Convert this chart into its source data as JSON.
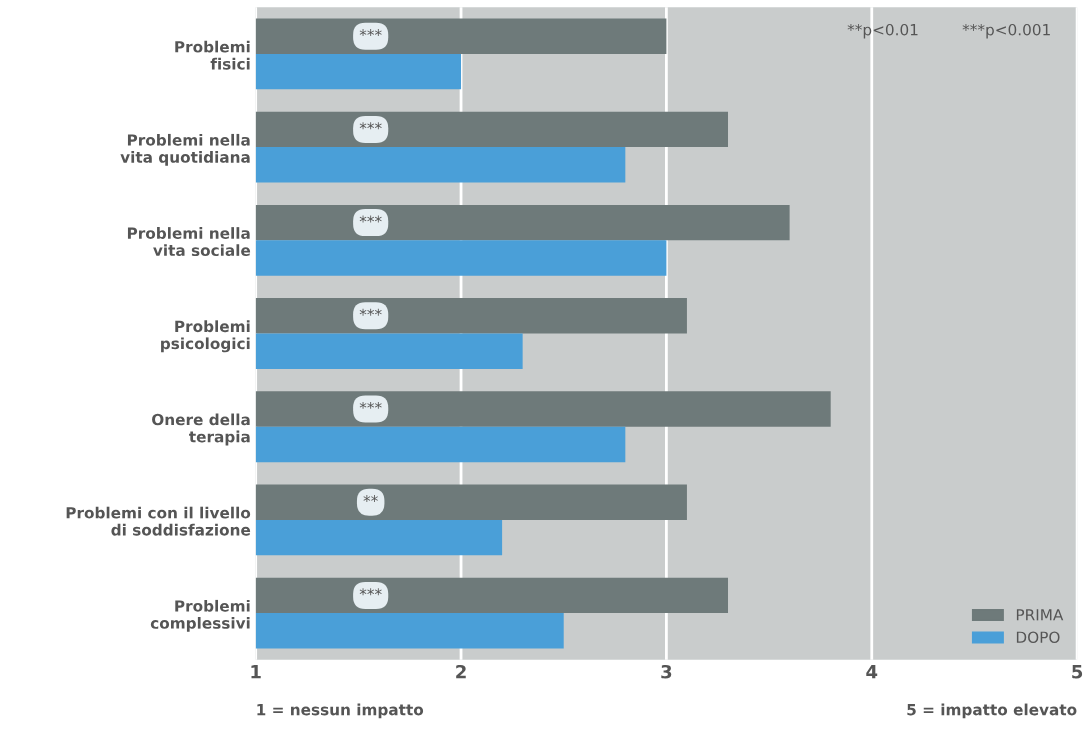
{
  "chart_data": {
    "type": "bar",
    "orientation": "horizontal",
    "categories": [
      "Problemi\nfisici",
      "Problemi nella\nvita quotidiana",
      "Problemi nella\nvita sociale",
      "Problemi\npsicologici",
      "Onere della\nterapia",
      "Problemi con il livello\ndi soddisfazione",
      "Problemi\ncomplessivi"
    ],
    "series": [
      {
        "name": "PRIMA",
        "color": "#6e7a7a",
        "values": [
          3.0,
          3.3,
          3.6,
          3.1,
          3.8,
          3.1,
          3.3
        ]
      },
      {
        "name": "DOPO",
        "color": "#4a9fd8",
        "values": [
          2.0,
          2.8,
          3.0,
          2.3,
          2.8,
          2.2,
          2.5
        ]
      }
    ],
    "xlim": [
      1,
      5
    ],
    "xticks": [
      1,
      2,
      3,
      4,
      5
    ],
    "grid": "x",
    "legend": "bottom right",
    "annotations": [
      {
        "text": "***",
        "y": "Problemi\nfisici"
      },
      {
        "text": "***",
        "y": "Problemi nella\nvita quotidiana"
      },
      {
        "text": "***",
        "y": "Problemi nella\nvita sociale"
      },
      {
        "text": "***",
        "y": "Problemi\npsicologici"
      },
      {
        "text": "***",
        "y": "Onere della\nterapia"
      },
      {
        "text": "**",
        "y": "Problemi con il livello\ndi soddisfazione"
      },
      {
        "text": "***",
        "y": "Problemi\ncomplessivi"
      },
      "**p<0.01",
      "***p<0.001",
      "1 = nessun impatto",
      "5 = impatto elevato"
    ]
  }
}
